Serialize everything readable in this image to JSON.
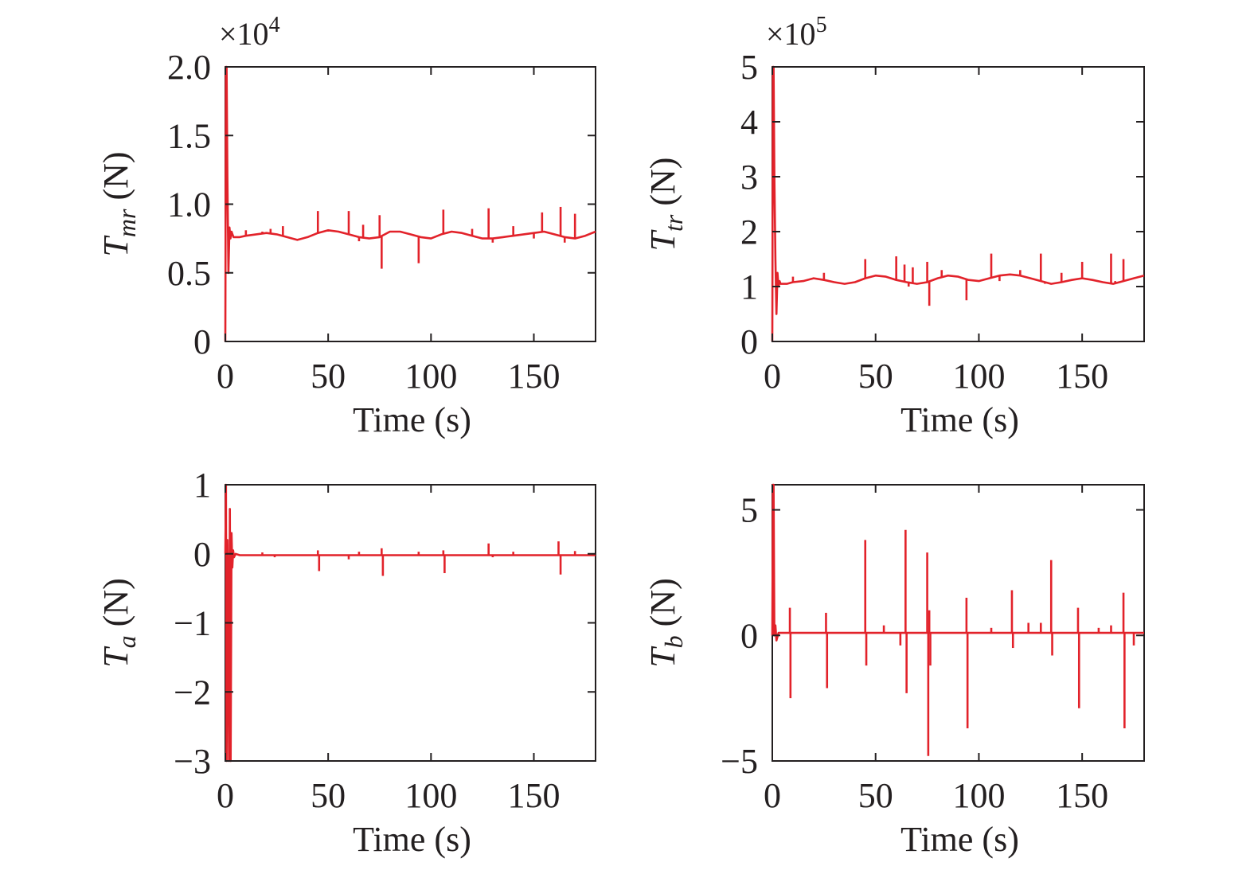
{
  "chart_data": [
    {
      "type": "line",
      "id": "tmr",
      "xlabel": "Time (s)",
      "ylabel_main": "T",
      "ylabel_sub": "mr",
      "ylabel_unit": " (N)",
      "multiplier_base": "×10",
      "multiplier_exp": "4",
      "xlim": [
        0,
        180
      ],
      "ylim": [
        0,
        2.0
      ],
      "x_ticks": [
        0,
        50,
        100,
        150
      ],
      "x_tick_labels": [
        "0",
        "50",
        "100",
        "150"
      ],
      "y_ticks": [
        0,
        0.5,
        1.0,
        1.5,
        2.0
      ],
      "y_tick_labels": [
        "0",
        "0.5",
        "1.0",
        "1.5",
        "2.0"
      ],
      "series_color": "#e2222a",
      "x": [
        0,
        0.3,
        0.6,
        1.0,
        1.5,
        2.0,
        2.5,
        3.0,
        3.5,
        4.0,
        5.0,
        7.0,
        10,
        15,
        20,
        25,
        30,
        35,
        40,
        45,
        50,
        55,
        60,
        65,
        70,
        75,
        80,
        85,
        90,
        95,
        100,
        105,
        110,
        115,
        120,
        125,
        130,
        135,
        140,
        145,
        150,
        155,
        160,
        165,
        170,
        175,
        180
      ],
      "y": [
        0,
        2.0,
        2.0,
        1.2,
        0.5,
        0.83,
        0.75,
        0.8,
        0.78,
        0.76,
        0.76,
        0.76,
        0.77,
        0.78,
        0.79,
        0.78,
        0.76,
        0.74,
        0.76,
        0.79,
        0.81,
        0.8,
        0.78,
        0.76,
        0.75,
        0.76,
        0.8,
        0.8,
        0.78,
        0.76,
        0.75,
        0.78,
        0.8,
        0.79,
        0.77,
        0.75,
        0.75,
        0.76,
        0.77,
        0.78,
        0.79,
        0.8,
        0.78,
        0.76,
        0.75,
        0.77,
        0.8
      ],
      "spikes": [
        [
          10,
          0.81
        ],
        [
          18,
          0.8
        ],
        [
          22,
          0.82
        ],
        [
          28,
          0.84
        ],
        [
          45,
          0.95
        ],
        [
          50,
          0.8
        ],
        [
          60,
          0.95
        ],
        [
          65,
          0.73
        ],
        [
          67,
          0.85
        ],
        [
          75,
          0.92
        ],
        [
          76,
          0.53
        ],
        [
          94,
          0.57
        ],
        [
          106,
          0.96
        ],
        [
          120,
          0.82
        ],
        [
          128,
          0.97
        ],
        [
          130,
          0.72
        ],
        [
          140,
          0.84
        ],
        [
          150,
          0.75
        ],
        [
          154,
          0.94
        ],
        [
          163,
          0.98
        ],
        [
          165,
          0.72
        ],
        [
          170,
          0.93
        ]
      ]
    },
    {
      "type": "line",
      "id": "ttr",
      "xlabel": "Time (s)",
      "ylabel_main": "T",
      "ylabel_sub": "tr",
      "ylabel_unit": " (N)",
      "multiplier_base": "×10",
      "multiplier_exp": "5",
      "xlim": [
        0,
        180
      ],
      "ylim": [
        0,
        5
      ],
      "x_ticks": [
        0,
        50,
        100,
        150
      ],
      "x_tick_labels": [
        "0",
        "50",
        "100",
        "150"
      ],
      "y_ticks": [
        0,
        1,
        2,
        3,
        4,
        5
      ],
      "y_tick_labels": [
        "0",
        "1",
        "2",
        "3",
        "4",
        "5"
      ],
      "series_color": "#e2222a",
      "x": [
        0,
        0.3,
        0.6,
        1.0,
        1.5,
        2.0,
        2.5,
        3.0,
        3.5,
        4.0,
        5.0,
        7.0,
        10,
        15,
        20,
        25,
        30,
        35,
        40,
        45,
        50,
        55,
        60,
        65,
        70,
        75,
        80,
        85,
        90,
        95,
        100,
        105,
        110,
        115,
        120,
        125,
        130,
        135,
        140,
        145,
        150,
        155,
        160,
        165,
        170,
        175,
        180
      ],
      "y": [
        0,
        5.0,
        5.0,
        3.0,
        1.5,
        0.5,
        1.25,
        1.0,
        1.1,
        1.05,
        1.05,
        1.05,
        1.08,
        1.1,
        1.15,
        1.12,
        1.08,
        1.05,
        1.08,
        1.15,
        1.2,
        1.18,
        1.12,
        1.08,
        1.05,
        1.08,
        1.15,
        1.2,
        1.18,
        1.12,
        1.1,
        1.15,
        1.2,
        1.22,
        1.2,
        1.15,
        1.1,
        1.05,
        1.08,
        1.12,
        1.15,
        1.12,
        1.08,
        1.05,
        1.1,
        1.15,
        1.2
      ],
      "spikes": [
        [
          10,
          1.18
        ],
        [
          20,
          1.15
        ],
        [
          25,
          1.25
        ],
        [
          28,
          1.1
        ],
        [
          45,
          1.5
        ],
        [
          49,
          1.2
        ],
        [
          60,
          1.55
        ],
        [
          64,
          1.4
        ],
        [
          66,
          1.0
        ],
        [
          68,
          1.35
        ],
        [
          75,
          1.45
        ],
        [
          76,
          0.65
        ],
        [
          82,
          1.3
        ],
        [
          94,
          0.75
        ],
        [
          106,
          1.6
        ],
        [
          110,
          1.1
        ],
        [
          120,
          1.3
        ],
        [
          130,
          1.6
        ],
        [
          132,
          1.05
        ],
        [
          140,
          1.25
        ],
        [
          150,
          1.45
        ],
        [
          164,
          1.6
        ],
        [
          166,
          1.1
        ],
        [
          170,
          1.5
        ]
      ]
    },
    {
      "type": "line",
      "id": "ta",
      "xlabel": "Time (s)",
      "ylabel_main": "T",
      "ylabel_sub": "a",
      "ylabel_unit": " (N)",
      "multiplier_base": "",
      "multiplier_exp": "",
      "xlim": [
        0,
        180
      ],
      "ylim": [
        -3,
        1
      ],
      "x_ticks": [
        0,
        50,
        100,
        150
      ],
      "x_tick_labels": [
        "0",
        "50",
        "100",
        "150"
      ],
      "y_ticks": [
        -3,
        -2,
        -1,
        0,
        1
      ],
      "y_tick_labels": [
        "−3",
        "−2",
        "−1",
        "0",
        "1"
      ],
      "series_color": "#e2222a",
      "x": [
        0,
        0.3,
        0.6,
        1.0,
        1.4,
        1.8,
        2.2,
        2.6,
        3.0,
        3.4,
        3.8,
        4.2,
        5.0,
        7.0,
        10,
        20,
        40,
        60,
        80,
        100,
        120,
        140,
        160,
        180
      ],
      "y": [
        0,
        1.0,
        -3.0,
        0.2,
        -0.7,
        -3.0,
        0.65,
        -3.0,
        0.3,
        -0.2,
        0.05,
        -0.05,
        0.0,
        -0.02,
        -0.02,
        -0.02,
        -0.02,
        -0.02,
        -0.02,
        -0.02,
        -0.02,
        -0.02,
        -0.02,
        -0.02
      ],
      "spikes": [
        [
          18,
          0.02
        ],
        [
          24,
          -0.05
        ],
        [
          45,
          0.05
        ],
        [
          45.6,
          -0.25
        ],
        [
          60,
          -0.08
        ],
        [
          65,
          0.03
        ],
        [
          76,
          0.08
        ],
        [
          76.6,
          -0.32
        ],
        [
          94,
          0.03
        ],
        [
          106,
          0.05
        ],
        [
          106.6,
          -0.28
        ],
        [
          128,
          0.15
        ],
        [
          130,
          -0.05
        ],
        [
          140,
          0.03
        ],
        [
          162,
          0.18
        ],
        [
          163,
          -0.3
        ],
        [
          170,
          0.04
        ]
      ]
    },
    {
      "type": "line",
      "id": "tb",
      "xlabel": "Time (s)",
      "ylabel_main": "T",
      "ylabel_sub": "b",
      "ylabel_unit": " (N)",
      "multiplier_base": "",
      "multiplier_exp": "",
      "xlim": [
        0,
        180
      ],
      "ylim": [
        -5,
        6
      ],
      "x_ticks": [
        0,
        50,
        100,
        150
      ],
      "x_tick_labels": [
        "0",
        "50",
        "100",
        "150"
      ],
      "y_ticks": [
        -5,
        0,
        5
      ],
      "y_tick_labels": [
        "−5",
        "0",
        "5"
      ],
      "series_color": "#e2222a",
      "x": [
        0,
        0.3,
        0.6,
        1.0,
        1.5,
        2.0,
        3.0,
        5.0,
        10,
        20,
        40,
        60,
        80,
        100,
        120,
        140,
        160,
        180
      ],
      "y": [
        0,
        6.0,
        6.0,
        0.0,
        0.4,
        -0.2,
        0.1,
        0.1,
        0.1,
        0.1,
        0.1,
        0.1,
        0.1,
        0.1,
        0.1,
        0.1,
        0.1,
        0.1
      ],
      "spikes": [
        [
          8.5,
          1.1
        ],
        [
          8.8,
          -2.5
        ],
        [
          16,
          0.1
        ],
        [
          26,
          0.9
        ],
        [
          26.5,
          -2.1
        ],
        [
          45,
          3.8
        ],
        [
          45.5,
          -1.2
        ],
        [
          54,
          0.4
        ],
        [
          62,
          -0.4
        ],
        [
          64.5,
          4.2
        ],
        [
          65,
          -2.3
        ],
        [
          75,
          3.3
        ],
        [
          75.5,
          -4.8
        ],
        [
          76,
          1.0
        ],
        [
          76.5,
          -1.2
        ],
        [
          94,
          1.5
        ],
        [
          94.5,
          -3.7
        ],
        [
          106,
          0.3
        ],
        [
          116,
          1.8
        ],
        [
          116.5,
          -0.5
        ],
        [
          124,
          0.5
        ],
        [
          130,
          0.5
        ],
        [
          135,
          3.0
        ],
        [
          135.5,
          -0.8
        ],
        [
          148,
          1.1
        ],
        [
          148.5,
          -2.9
        ],
        [
          158,
          0.3
        ],
        [
          164,
          0.4
        ],
        [
          170,
          1.7
        ],
        [
          170.5,
          -3.7
        ],
        [
          175,
          -0.4
        ]
      ]
    }
  ]
}
